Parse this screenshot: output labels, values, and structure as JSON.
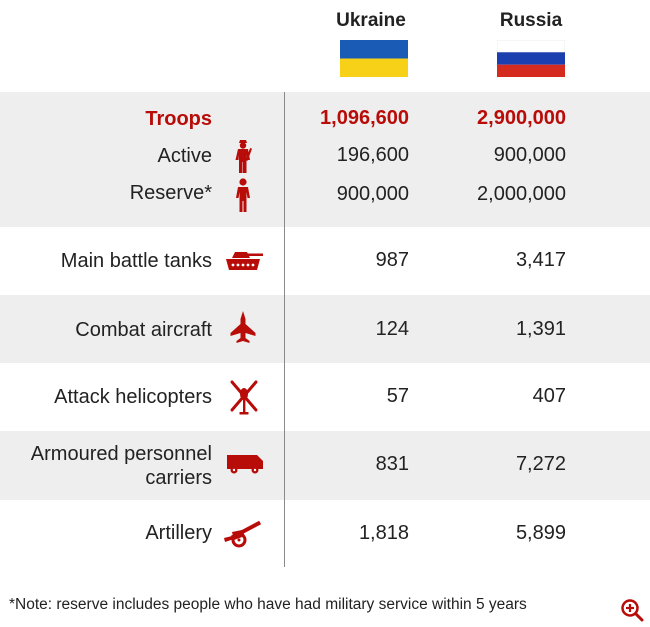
{
  "header": {
    "ukraine": "Ukraine",
    "russia": "Russia"
  },
  "colors": {
    "accent_red": "#b80c09",
    "ukraine_blue": "#1a5bb5",
    "ukraine_yellow": "#f7d117",
    "russia_blue": "#1c3fb0",
    "russia_red": "#d52b1e",
    "shade": "#eeeeee"
  },
  "chart_data": {
    "type": "table",
    "title": "",
    "columns": [
      "Ukraine",
      "Russia"
    ],
    "rows": [
      {
        "label": "Troops",
        "ukraine": "1,096,600",
        "russia": "2,900,000",
        "icon": "none"
      },
      {
        "label": "Active",
        "ukraine": "196,600",
        "russia": "900,000",
        "icon": "soldier-icon"
      },
      {
        "label": "Reserve*",
        "ukraine": "900,000",
        "russia": "2,000,000",
        "icon": "person-icon"
      },
      {
        "label": "Main battle tanks",
        "ukraine": "987",
        "russia": "3,417",
        "icon": "tank-icon"
      },
      {
        "label": "Combat aircraft",
        "ukraine": "124",
        "russia": "1,391",
        "icon": "jet-icon"
      },
      {
        "label": "Attack helicopters",
        "ukraine": "57",
        "russia": "407",
        "icon": "helicopter-icon"
      },
      {
        "label": "Armoured personnel carriers",
        "label_lines": [
          "Armoured personnel",
          "carriers"
        ],
        "ukraine": "831",
        "russia": "7,272",
        "icon": "truck-icon"
      },
      {
        "label": "Artillery",
        "ukraine": "1,818",
        "russia": "5,899",
        "icon": "artillery-icon"
      }
    ]
  },
  "footer": {
    "note": "*Note: reserve includes people who have had military service within 5 years",
    "zoom_icon": "zoom-in-icon"
  }
}
